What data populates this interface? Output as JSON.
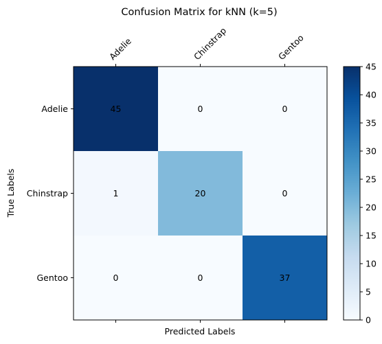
{
  "chart_data": {
    "type": "heatmap",
    "title": "Confusion Matrix for kNN (k=5)",
    "xlabel": "Predicted Labels",
    "ylabel": "True Labels",
    "x_categories": [
      "Adelie",
      "Chinstrap",
      "Gentoo"
    ],
    "y_categories": [
      "Adelie",
      "Chinstrap",
      "Gentoo"
    ],
    "values": [
      [
        45,
        0,
        0
      ],
      [
        1,
        20,
        0
      ],
      [
        0,
        0,
        37
      ]
    ],
    "colorbar": {
      "colormap": "Blues",
      "range": [
        0,
        45
      ],
      "ticks": [
        "0",
        "5",
        "10",
        "15",
        "20",
        "25",
        "30",
        "35",
        "40",
        "45"
      ]
    },
    "x_ticks_position": "top",
    "grid": false
  }
}
